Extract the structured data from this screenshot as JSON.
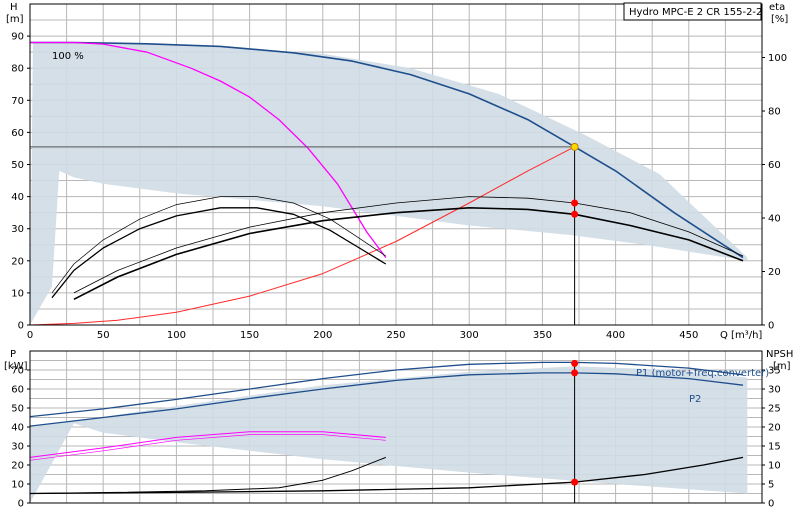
{
  "title": "Hydro MPC-E 2 CR 155-2-2",
  "speed_label": "100 %",
  "colors": {
    "envelope": "#cfdbe6",
    "qh_curve": "#1f4e8c",
    "magenta": "#ff00ff",
    "red_curve": "#ff2a2a",
    "black": "#000000",
    "dot": "#ff0000",
    "duty_dot": "#ffd700",
    "grid": "#b8b8b8"
  },
  "chart_data": [
    {
      "type": "line",
      "name": "QH diagram",
      "xlabel": "Q [m³/h]",
      "ylabel": "H",
      "ylabel_unit": "[m]",
      "y2label": "eta",
      "y2label_unit": "[%]",
      "xlim": [
        0,
        500
      ],
      "ylim": [
        0,
        100
      ],
      "y2lim": [
        0,
        120
      ],
      "x_ticks": [
        0,
        50,
        100,
        150,
        200,
        250,
        300,
        350,
        400,
        450
      ],
      "y_ticks": [
        0,
        10,
        20,
        30,
        40,
        50,
        60,
        70,
        80,
        90
      ],
      "y2_ticks": [
        0,
        20,
        40,
        60,
        80,
        100
      ],
      "grid": true,
      "envelope": {
        "x": [
          0,
          2,
          20,
          40,
          80,
          130,
          200,
          260,
          320,
          380,
          430,
          490,
          490,
          420,
          370,
          300,
          250,
          200,
          100,
          50,
          30,
          20,
          15,
          0
        ],
        "y": [
          0,
          88,
          88,
          88,
          87.5,
          86.5,
          84.5,
          80,
          72,
          59,
          47,
          21,
          20,
          25,
          28,
          31,
          34,
          37,
          41,
          44,
          46,
          48,
          12,
          0
        ]
      },
      "duty_point": {
        "x": 372,
        "y": 55.5
      },
      "series": [
        {
          "name": "",
          "role": "max_head",
          "x": [
            0,
            30,
            80,
            130,
            180,
            220,
            260,
            300,
            340,
            372,
            400,
            440,
            487
          ],
          "y": [
            88,
            88,
            87.6,
            86.8,
            84.8,
            82.2,
            78,
            72,
            64,
            55.5,
            48,
            35,
            21
          ]
        },
        {
          "name": "",
          "role": "system",
          "x": [
            0,
            30,
            60,
            100,
            150,
            200,
            250,
            300,
            340,
            372
          ],
          "y": [
            0,
            0.5,
            1.5,
            4,
            9,
            16,
            26,
            38,
            48,
            55.5
          ],
          "axis": "y"
        },
        {
          "name": "",
          "role": "one_pump_head",
          "x": [
            0,
            30,
            50,
            80,
            110,
            130,
            150,
            170,
            190,
            210,
            230,
            243
          ],
          "y": [
            88,
            88,
            87.5,
            85,
            80,
            76,
            71,
            64,
            55,
            44,
            29,
            21
          ],
          "axis": "y"
        },
        {
          "name": "",
          "role": "one_pump_eta_a",
          "x": [
            15,
            30,
            50,
            75,
            100,
            130,
            155,
            180,
            205,
            225,
            243
          ],
          "y": [
            8.5,
            17,
            24,
            30,
            34,
            36.5,
            36.5,
            34.5,
            29.5,
            24,
            19
          ],
          "axis": "y"
        },
        {
          "name": "",
          "role": "one_pump_eta_b",
          "x": [
            15,
            30,
            50,
            75,
            100,
            130,
            155,
            180,
            205,
            225,
            243
          ],
          "y": [
            10,
            19,
            26.5,
            33,
            37.5,
            40,
            40,
            38,
            33,
            27,
            21.5
          ],
          "axis": "y"
        },
        {
          "name": "",
          "role": "eta_total",
          "x": [
            30,
            60,
            100,
            150,
            200,
            250,
            300,
            340,
            372,
            410,
            450,
            487
          ],
          "y": [
            8,
            15,
            22,
            28.5,
            32.5,
            35,
            36.5,
            36,
            34.5,
            31,
            26.5,
            20
          ],
          "axis": "y"
        },
        {
          "name": "",
          "role": "eta_pump",
          "x": [
            30,
            60,
            100,
            150,
            200,
            250,
            300,
            340,
            372,
            410,
            450,
            487
          ],
          "y": [
            10,
            17,
            24,
            30.5,
            35,
            38,
            40,
            39.5,
            38,
            35,
            29,
            21.5
          ],
          "axis": "y"
        }
      ],
      "markers": [
        {
          "x": 372,
          "y": 38
        },
        {
          "x": 372,
          "y": 34.5
        }
      ]
    },
    {
      "type": "line",
      "name": "Power and NPSH diagram",
      "ylabel": "P",
      "ylabel_unit": "[kW]",
      "y2label": "NPSH",
      "y2label_unit": "[m]",
      "xlim": [
        0,
        500
      ],
      "ylim": [
        0,
        80
      ],
      "y2lim": [
        0,
        40
      ],
      "y_ticks": [
        0,
        10,
        20,
        30,
        40,
        50,
        60,
        70
      ],
      "y2_ticks": [
        0,
        5,
        10,
        15,
        20,
        25,
        30,
        35
      ],
      "grid": true,
      "envelope": {
        "x": [
          0,
          30,
          100,
          200,
          300,
          372,
          440,
          490,
          490,
          400,
          300,
          200,
          100,
          50,
          30,
          0
        ],
        "y": [
          40,
          43,
          51,
          62,
          69,
          72,
          70,
          66,
          5,
          10,
          16,
          23,
          32,
          37,
          42,
          0
        ]
      },
      "series": [
        {
          "name": "P1 (motor+freq.converter)",
          "x": [
            0,
            50,
            100,
            150,
            200,
            250,
            300,
            350,
            372,
            400,
            450,
            487
          ],
          "y": [
            45.5,
            49.5,
            54.5,
            60,
            65.5,
            70,
            73,
            74,
            74,
            73.5,
            71,
            67.5
          ]
        },
        {
          "name": "P2",
          "x": [
            0,
            50,
            100,
            150,
            200,
            250,
            300,
            350,
            372,
            400,
            450,
            487
          ],
          "y": [
            40.5,
            45,
            49.5,
            55,
            60,
            64.5,
            67.5,
            68.5,
            68.5,
            68,
            65.5,
            62
          ]
        },
        {
          "name": "",
          "role": "one_pump_p1",
          "x": [
            0,
            50,
            100,
            150,
            200,
            243
          ],
          "y": [
            24,
            29,
            34.5,
            37.5,
            37.5,
            34.5
          ]
        },
        {
          "name": "",
          "role": "one_pump_p2",
          "x": [
            0,
            50,
            100,
            150,
            200,
            243
          ],
          "y": [
            22.5,
            27.5,
            33,
            36,
            36,
            33
          ]
        },
        {
          "name": "",
          "role": "npsh_one_pump",
          "x": [
            0,
            60,
            120,
            170,
            200,
            220,
            243
          ],
          "y": [
            2.5,
            2.8,
            3.2,
            4,
            6,
            8.5,
            12
          ],
          "axis": "y2"
        },
        {
          "name": "",
          "role": "npsh",
          "x": [
            0,
            100,
            200,
            300,
            372,
            420,
            460,
            487
          ],
          "y": [
            2.5,
            2.8,
            3.2,
            4,
            5.5,
            7.5,
            10,
            12
          ],
          "axis": "y2"
        }
      ],
      "markers": [
        {
          "x": 372,
          "y": 73.5
        },
        {
          "x": 372,
          "y": 68.5
        },
        {
          "x": 372,
          "y": 11
        }
      ]
    }
  ]
}
